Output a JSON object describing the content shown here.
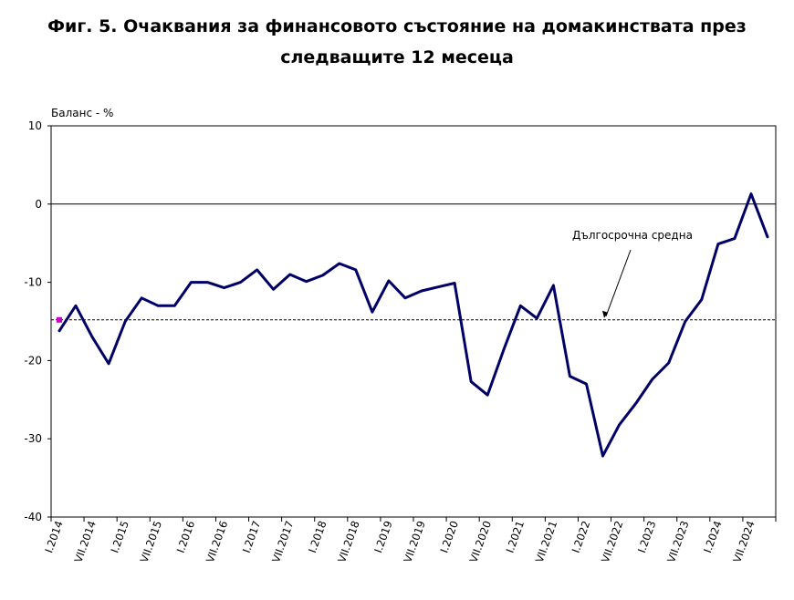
{
  "title_line1": "Фиг. 5. Очаквания за финансовото състояние на домакинствата през",
  "title_line2": "следващите 12 месеца",
  "chart_data": {
    "type": "line",
    "title": "Фиг. 5. Очаквания за финансовото състояние на домакинствата през следващите 12 месеца",
    "ylabel": "Баланс - %",
    "xlabel": "",
    "ylim": [
      -40,
      10
    ],
    "yticks": [
      10,
      0,
      -10,
      -20,
      -30,
      -40
    ],
    "grid": false,
    "x_tick_labels": [
      "I.2014",
      "VII.2014",
      "I.2015",
      "VII.2015",
      "I.2016",
      "VII.2016",
      "I.2017",
      "VII.2017",
      "I.2018",
      "VII.2018",
      "I.2019",
      "VII.2019",
      "I.2020",
      "VII.2020",
      "I.2021",
      "VII.2021",
      "I.2022",
      "VII.2022",
      "I.2023",
      "VII.2023",
      "I.2024",
      "VII.2024"
    ],
    "series": [
      {
        "color": "#000066",
        "values": [
          -16.2,
          -13.0,
          -17.0,
          -20.4,
          -15.0,
          -12.0,
          -13.0,
          -13.0,
          -10.0,
          -10.0,
          -10.7,
          -10.0,
          -8.4,
          -10.9,
          -9.0,
          -9.9,
          -9.1,
          -7.6,
          -8.4,
          -13.8,
          -9.8,
          -12.0,
          -11.1,
          -10.6,
          -10.1,
          -22.7,
          -24.4,
          -18.5,
          -13.0,
          -14.6,
          -10.4,
          -22.0,
          -23.0,
          -32.2,
          -28.2,
          -25.5,
          -22.4,
          -20.3,
          -15.0,
          -12.2,
          -5.1,
          -4.4,
          1.3,
          -4.2
        ]
      }
    ],
    "long_term_average": -14.8,
    "annotation": "Дългосрочна средна",
    "marker_color": "#cc00cc"
  }
}
